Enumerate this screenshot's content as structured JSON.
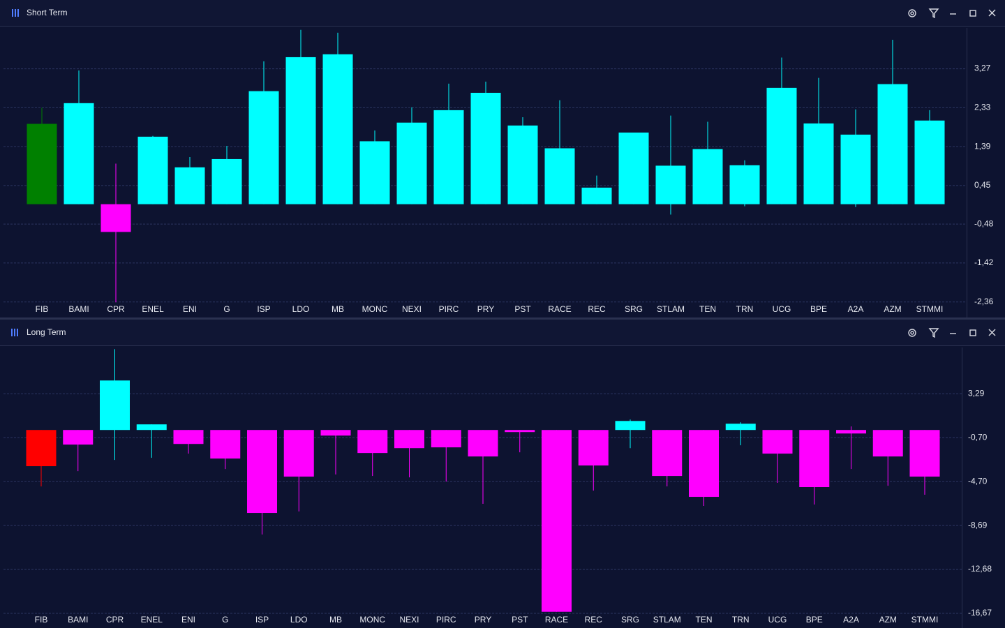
{
  "chart_data": [
    {
      "type": "candlestick",
      "title": "Short Term",
      "categories": [
        "FIB",
        "BAMI",
        "CPR",
        "ENEL",
        "ENI",
        "G",
        "ISP",
        "LDO",
        "MB",
        "MONC",
        "NEXI",
        "PIRC",
        "PRY",
        "PST",
        "RACE",
        "REC",
        "SRG",
        "STLAM",
        "TEN",
        "TRN",
        "UCG",
        "BPE",
        "A2A",
        "AZM",
        "STMMI"
      ],
      "open": [
        0,
        0,
        0,
        0,
        0,
        0,
        0,
        0,
        0,
        0,
        0,
        0,
        0,
        0,
        0,
        0,
        0,
        0,
        0,
        0,
        0,
        0,
        0,
        0,
        0
      ],
      "high": [
        2.33,
        3.23,
        0.98,
        1.65,
        1.14,
        1.41,
        3.45,
        4.21,
        4.14,
        1.78,
        2.34,
        2.91,
        2.96,
        2.1,
        2.51,
        0.69,
        1.73,
        2.14,
        1.99,
        1.06,
        3.54,
        3.05,
        2.29,
        3.97,
        2.27
      ],
      "low": [
        0,
        0,
        -2.37,
        0,
        0,
        0,
        0,
        0,
        0,
        0,
        0,
        0,
        0,
        0,
        0,
        0,
        0,
        -0.25,
        0,
        -0.05,
        0,
        0,
        -0.07,
        0,
        0
      ],
      "close": [
        1.94,
        2.44,
        -0.67,
        1.63,
        0.89,
        1.09,
        2.73,
        3.55,
        3.62,
        1.52,
        1.97,
        2.27,
        2.69,
        1.9,
        1.35,
        0.4,
        1.73,
        0.93,
        1.33,
        0.94,
        2.81,
        1.95,
        1.68,
        2.9,
        2.02
      ],
      "candle_colors": [
        "#008000",
        "#00ffff",
        "#ff00ff",
        "#00ffff",
        "#00ffff",
        "#00ffff",
        "#00ffff",
        "#00ffff",
        "#00ffff",
        "#00ffff",
        "#00ffff",
        "#00ffff",
        "#00ffff",
        "#00ffff",
        "#00ffff",
        "#00ffff",
        "#00ffff",
        "#00ffff",
        "#00ffff",
        "#00ffff",
        "#00ffff",
        "#00ffff",
        "#00ffff",
        "#00ffff",
        "#00ffff"
      ],
      "ylim": [
        -2.5,
        4.24
      ],
      "yticks": [
        {
          "value": 3.27,
          "label": "3,27"
        },
        {
          "value": 2.33,
          "label": "2,33"
        },
        {
          "value": 1.39,
          "label": "1,39"
        },
        {
          "value": 0.45,
          "label": "0,45"
        },
        {
          "value": -0.48,
          "label": "-0,48"
        },
        {
          "value": -1.42,
          "label": "-1,42"
        },
        {
          "value": -2.36,
          "label": "-2,36"
        }
      ],
      "grid": true
    },
    {
      "type": "candlestick",
      "title": "Long Term",
      "categories": [
        "FIB",
        "BAMI",
        "CPR",
        "ENEL",
        "ENI",
        "G",
        "ISP",
        "LDO",
        "MB",
        "MONC",
        "NEXI",
        "PIRC",
        "PRY",
        "PST",
        "RACE",
        "REC",
        "SRG",
        "STLAM",
        "TEN",
        "TRN",
        "UCG",
        "BPE",
        "A2A",
        "AZM",
        "STMMI"
      ],
      "open": [
        0,
        0,
        0,
        0,
        0,
        0,
        0,
        0,
        0,
        0,
        0,
        0,
        0,
        0,
        0,
        0,
        0,
        0,
        0,
        0,
        0,
        0,
        0,
        0,
        0
      ],
      "high": [
        0,
        0,
        7.35,
        0.51,
        0,
        0,
        0,
        0,
        0,
        0,
        0,
        0,
        0,
        0,
        0,
        0,
        0.95,
        0,
        0,
        0.7,
        0,
        0,
        0.32,
        0,
        0
      ],
      "low": [
        -5.13,
        -3.74,
        -2.72,
        -2.53,
        -2.15,
        -3.55,
        -9.5,
        -7.41,
        -4.05,
        -4.18,
        -4.31,
        -4.69,
        -6.71,
        -2.03,
        -16.53,
        -5.51,
        -1.65,
        -5.13,
        -6.9,
        -1.39,
        -4.81,
        -6.78,
        -3.55,
        -5.07,
        -5.89
      ],
      "close": [
        -3.29,
        -1.33,
        4.5,
        0.51,
        -1.27,
        -2.6,
        -7.54,
        -4.24,
        -0.51,
        -2.09,
        -1.65,
        -1.58,
        -2.41,
        -0.19,
        -16.53,
        -3.23,
        0.82,
        -4.18,
        -6.08,
        0.57,
        -2.15,
        -5.19,
        -0.32,
        -2.41,
        -4.24
      ],
      "candle_colors": [
        "#ff0000",
        "#ff00ff",
        "#00ffff",
        "#00ffff",
        "#ff00ff",
        "#ff00ff",
        "#ff00ff",
        "#ff00ff",
        "#ff00ff",
        "#ff00ff",
        "#ff00ff",
        "#ff00ff",
        "#ff00ff",
        "#ff00ff",
        "#ff00ff",
        "#ff00ff",
        "#00ffff",
        "#ff00ff",
        "#ff00ff",
        "#00ffff",
        "#ff00ff",
        "#ff00ff",
        "#ff00ff",
        "#ff00ff",
        "#ff00ff"
      ],
      "ylim": [
        -16.8,
        7.5
      ],
      "yticks": [
        {
          "value": 3.29,
          "label": "3,29"
        },
        {
          "value": -0.7,
          "label": "-0,70"
        },
        {
          "value": -4.7,
          "label": "-4,70"
        },
        {
          "value": -8.69,
          "label": "-8,69"
        },
        {
          "value": -12.68,
          "label": "-12,68"
        },
        {
          "value": -16.67,
          "label": "-16,67"
        }
      ],
      "grid": true
    }
  ]
}
